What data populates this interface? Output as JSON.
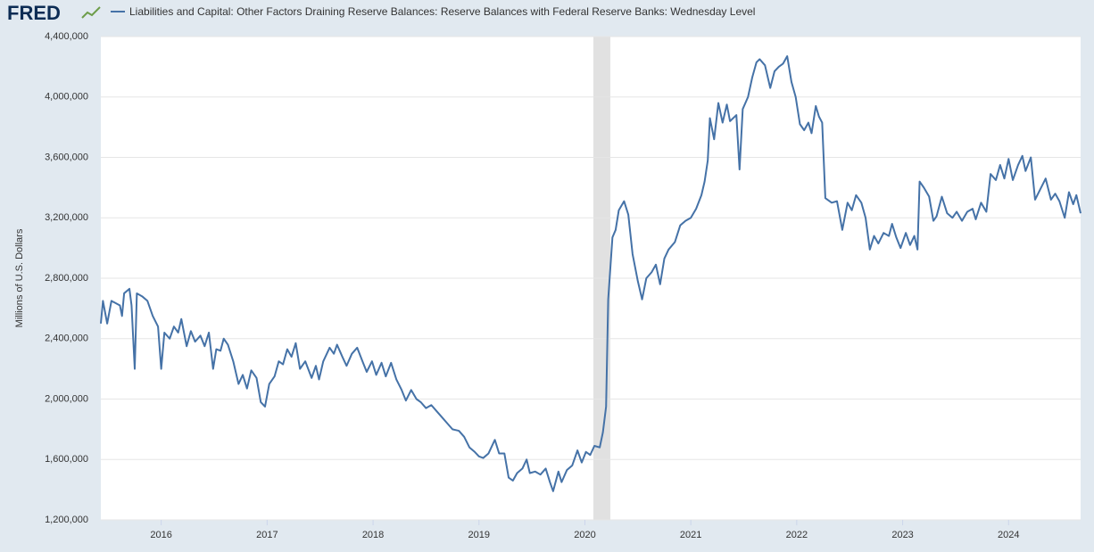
{
  "chart_data": {
    "type": "line",
    "logo": "FRED",
    "y_label": "Millions of U.S. Dollars",
    "xlim": [
      2015.43,
      2024.68
    ],
    "xticks": [
      2016,
      2017,
      2018,
      2019,
      2020,
      2021,
      2022,
      2023,
      2024
    ],
    "ylim": [
      1200000,
      4400000
    ],
    "yticks": [
      {
        "value": 1200000,
        "label": "1,200,000"
      },
      {
        "value": 1600000,
        "label": "1,600,000"
      },
      {
        "value": 2000000,
        "label": "2,000,000"
      },
      {
        "value": 2400000,
        "label": "2,400,000"
      },
      {
        "value": 2800000,
        "label": "2,800,000"
      },
      {
        "value": 3200000,
        "label": "3,200,000"
      },
      {
        "value": 3600000,
        "label": "3,600,000"
      },
      {
        "value": 4000000,
        "label": "4,000,000"
      },
      {
        "value": 4400000,
        "label": "4,400,000"
      }
    ],
    "grid": true,
    "shaded_range": [
      2020.08,
      2020.24
    ],
    "shade_color": "#e1e1e1",
    "x": [
      2015.43,
      2015.45,
      2015.49,
      2015.53,
      2015.61,
      2015.63,
      2015.65,
      2015.7,
      2015.72,
      2015.75,
      2015.77,
      2015.82,
      2015.87,
      2015.92,
      2015.97,
      2016.0,
      2016.03,
      2016.08,
      2016.12,
      2016.16,
      2016.19,
      2016.24,
      2016.28,
      2016.32,
      2016.37,
      2016.41,
      2016.45,
      2016.49,
      2016.52,
      2016.56,
      2016.59,
      2016.63,
      2016.68,
      2016.73,
      2016.77,
      2016.81,
      2016.85,
      2016.9,
      2016.94,
      2016.98,
      2017.02,
      2017.07,
      2017.11,
      2017.15,
      2017.19,
      2017.23,
      2017.27,
      2017.31,
      2017.36,
      2017.42,
      2017.46,
      2017.49,
      2017.53,
      2017.59,
      2017.63,
      2017.66,
      2017.71,
      2017.75,
      2017.8,
      2017.85,
      2017.9,
      2017.94,
      2017.99,
      2018.03,
      2018.08,
      2018.12,
      2018.17,
      2018.22,
      2018.27,
      2018.31,
      2018.36,
      2018.41,
      2018.45,
      2018.5,
      2018.55,
      2018.6,
      2018.65,
      2018.7,
      2018.75,
      2018.81,
      2018.86,
      2018.91,
      2018.96,
      2019.0,
      2019.04,
      2019.09,
      2019.15,
      2019.19,
      2019.24,
      2019.28,
      2019.32,
      2019.36,
      2019.41,
      2019.45,
      2019.48,
      2019.53,
      2019.58,
      2019.63,
      2019.67,
      2019.7,
      2019.75,
      2019.78,
      2019.83,
      2019.88,
      2019.93,
      2019.97,
      2020.01,
      2020.05,
      2020.09,
      2020.14,
      2020.17,
      2020.2,
      2020.22,
      2020.26,
      2020.29,
      2020.32,
      2020.37,
      2020.41,
      2020.45,
      2020.5,
      2020.54,
      2020.58,
      2020.63,
      2020.67,
      2020.71,
      2020.75,
      2020.79,
      2020.85,
      2020.9,
      2020.95,
      2021.0,
      2021.05,
      2021.1,
      2021.13,
      2021.16,
      2021.18,
      2021.22,
      2021.26,
      2021.3,
      2021.34,
      2021.37,
      2021.43,
      2021.46,
      2021.49,
      2021.54,
      2021.58,
      2021.62,
      2021.65,
      2021.7,
      2021.75,
      2021.79,
      2021.83,
      2021.87,
      2021.91,
      2021.95,
      2021.99,
      2022.03,
      2022.07,
      2022.11,
      2022.14,
      2022.18,
      2022.21,
      2022.24,
      2022.27,
      2022.33,
      2022.38,
      2022.43,
      2022.48,
      2022.52,
      2022.56,
      2022.61,
      2022.65,
      2022.69,
      2022.73,
      2022.77,
      2022.82,
      2022.87,
      2022.9,
      2022.94,
      2022.98,
      2023.03,
      2023.07,
      2023.11,
      2023.14,
      2023.16,
      2023.2,
      2023.25,
      2023.29,
      2023.32,
      2023.37,
      2023.42,
      2023.47,
      2023.51,
      2023.56,
      2023.61,
      2023.66,
      2023.69,
      2023.74,
      2023.79,
      2023.83,
      2023.88,
      2023.92,
      2023.96,
      2024.0,
      2024.04,
      2024.09,
      2024.13,
      2024.16,
      2024.21,
      2024.25,
      2024.3,
      2024.35,
      2024.4,
      2024.44,
      2024.48,
      2024.53,
      2024.57,
      2024.61,
      2024.64,
      2024.68
    ],
    "series": [
      {
        "name": "Liabilities and Capital: Other Factors Draining Reserve Balances: Reserve Balances with Federal Reserve Banks: Wednesday Level",
        "color": "#4572a7",
        "values": [
          2500000,
          2650000,
          2500000,
          2650000,
          2620000,
          2550000,
          2700000,
          2730000,
          2620000,
          2200000,
          2700000,
          2680000,
          2650000,
          2550000,
          2480000,
          2200000,
          2440000,
          2400000,
          2480000,
          2440000,
          2530000,
          2350000,
          2450000,
          2380000,
          2420000,
          2350000,
          2440000,
          2200000,
          2330000,
          2320000,
          2400000,
          2360000,
          2250000,
          2100000,
          2160000,
          2070000,
          2190000,
          2140000,
          1980000,
          1950000,
          2100000,
          2150000,
          2250000,
          2230000,
          2330000,
          2280000,
          2370000,
          2200000,
          2250000,
          2140000,
          2220000,
          2130000,
          2250000,
          2340000,
          2300000,
          2360000,
          2280000,
          2220000,
          2300000,
          2340000,
          2250000,
          2180000,
          2250000,
          2160000,
          2240000,
          2150000,
          2240000,
          2130000,
          2060000,
          1990000,
          2060000,
          2000000,
          1980000,
          1940000,
          1960000,
          1920000,
          1880000,
          1840000,
          1800000,
          1790000,
          1750000,
          1680000,
          1650000,
          1620000,
          1610000,
          1640000,
          1730000,
          1640000,
          1640000,
          1480000,
          1460000,
          1510000,
          1540000,
          1600000,
          1510000,
          1520000,
          1500000,
          1540000,
          1450000,
          1390000,
          1520000,
          1450000,
          1530000,
          1560000,
          1660000,
          1580000,
          1650000,
          1630000,
          1690000,
          1680000,
          1780000,
          1950000,
          2660000,
          3070000,
          3120000,
          3250000,
          3310000,
          3220000,
          2960000,
          2780000,
          2660000,
          2800000,
          2840000,
          2890000,
          2760000,
          2930000,
          2990000,
          3040000,
          3150000,
          3180000,
          3200000,
          3260000,
          3350000,
          3440000,
          3580000,
          3860000,
          3720000,
          3960000,
          3830000,
          3950000,
          3840000,
          3880000,
          3520000,
          3920000,
          4000000,
          4130000,
          4230000,
          4250000,
          4210000,
          4060000,
          4170000,
          4200000,
          4220000,
          4270000,
          4100000,
          4000000,
          3820000,
          3780000,
          3830000,
          3760000,
          3940000,
          3870000,
          3830000,
          3330000,
          3300000,
          3310000,
          3120000,
          3300000,
          3250000,
          3350000,
          3300000,
          3200000,
          2990000,
          3080000,
          3030000,
          3100000,
          3080000,
          3160000,
          3070000,
          3000000,
          3100000,
          3020000,
          3080000,
          2990000,
          3440000,
          3400000,
          3340000,
          3180000,
          3210000,
          3340000,
          3230000,
          3200000,
          3240000,
          3180000,
          3240000,
          3260000,
          3190000,
          3300000,
          3240000,
          3490000,
          3450000,
          3550000,
          3460000,
          3590000,
          3450000,
          3550000,
          3610000,
          3510000,
          3600000,
          3320000,
          3390000,
          3460000,
          3320000,
          3360000,
          3310000,
          3200000,
          3370000,
          3290000,
          3350000,
          3230000
        ]
      }
    ]
  }
}
